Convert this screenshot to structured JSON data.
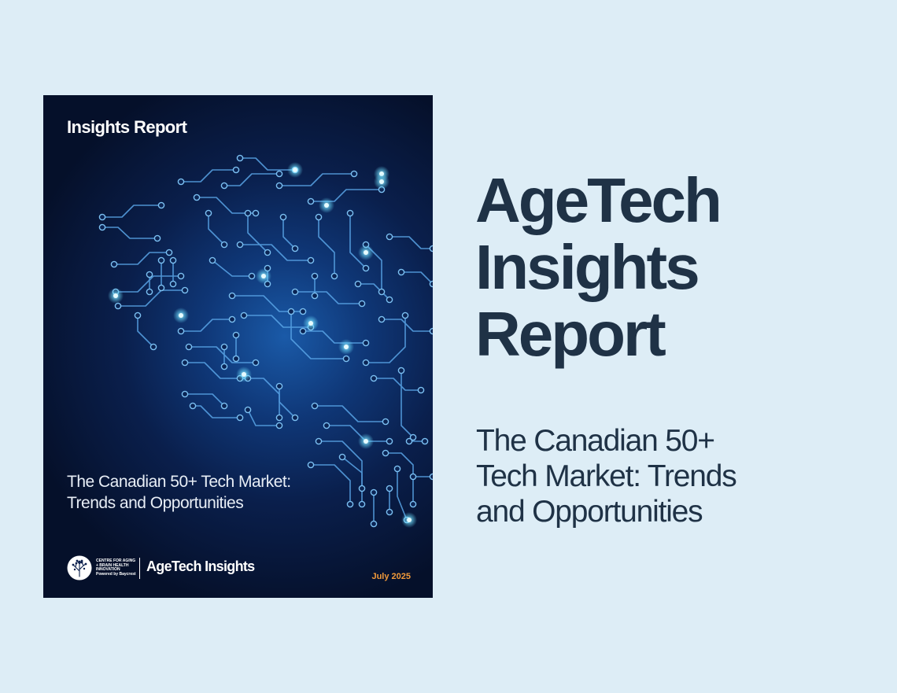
{
  "cover": {
    "kicker": "Insights Report",
    "subtitle_line1": "The Canadian 50+ Tech Market:",
    "subtitle_line2": "Trends and Opportunities",
    "footer": {
      "centre_line1": "CENTRE FOR AGING",
      "centre_line2": "+ BRAIN HEALTH",
      "centre_line3": "INNOVATION",
      "centre_line4": "Powered by Baycrest",
      "brand": "AgeTech Insights"
    },
    "date": "July 2025"
  },
  "headline": {
    "line1": "AgeTech",
    "line2": "Insights",
    "line3": "Report"
  },
  "subhead": {
    "line1": "The Canadian 50+",
    "line2": "Tech Market: Trends",
    "line3": "and Opportunities"
  },
  "colors": {
    "background": "#ddedf6",
    "headline_text": "#1f3246",
    "cover_dark": "#05102a",
    "cover_glow": "#1a5aa8",
    "circuit_line": "#5aa6e8",
    "date_accent": "#f29a3a"
  }
}
